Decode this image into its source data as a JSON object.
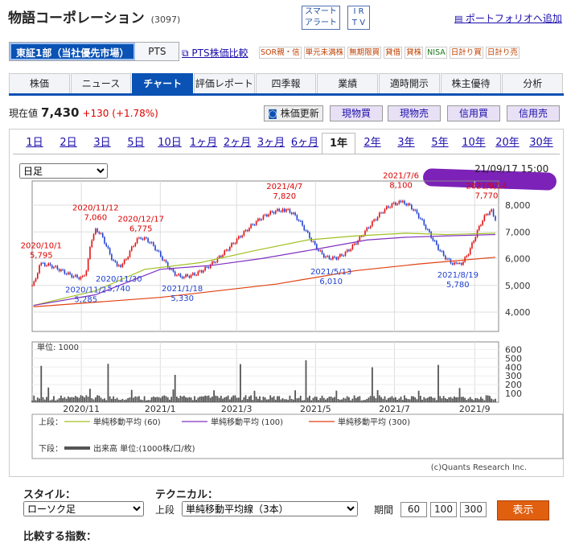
{
  "header": {
    "name": "物語コーポレーション",
    "code": "(3097)",
    "btn_smart": "スマート",
    "btn_alert": "アラート",
    "btn_ir": "I R",
    "btn_tv": "T V",
    "portfolio": "ポートフォリオへ追加"
  },
  "market": {
    "active": "東証1部（当社優先市場）",
    "pts": "PTS",
    "pts_compare": "PTS株価比較"
  },
  "flags": [
    "SOR親・信",
    "単元未満株",
    "無期限買",
    "貸借",
    "貸株",
    "NISA",
    "日計り買",
    "日計り売"
  ],
  "nav": [
    "株価",
    "ニュース",
    "チャート",
    "評価レポート",
    "四季報",
    "業績",
    "適時開示",
    "株主優待",
    "分析"
  ],
  "quote": {
    "label": "現在値",
    "price": "7,430",
    "change": "+130",
    "pct": "(+1.78%)"
  },
  "actions": {
    "update": "株価更新",
    "genbutsu_buy": "現物買",
    "genbutsu_sell": "現物売",
    "shinyo_buy": "信用買",
    "shinyo_sell": "信用売"
  },
  "periods": [
    "1日",
    "2日",
    "3日",
    "5日",
    "10日",
    "1ヶ月",
    "2ヶ月",
    "3ヶ月",
    "6ヶ月",
    "1年",
    "2年",
    "3年",
    "5年",
    "10年",
    "20年",
    "30年"
  ],
  "active_period": "1年",
  "chart": {
    "type_select": "日足",
    "datetime": "21/09/17 15:00",
    "y_ticks": [
      "8,000",
      "7,000",
      "6,000",
      "5,000",
      "4,000"
    ],
    "vol_ticks": [
      "600",
      "500",
      "400",
      "300",
      "200",
      "100"
    ],
    "vol_unit": "単位: 1000",
    "x_ticks": [
      "2020/11",
      "2021/1",
      "2021/3",
      "2021/5",
      "2021/7",
      "2021/9"
    ],
    "annotations": [
      {
        "d": "2020/10/1",
        "v": "5,795"
      },
      {
        "d": "2020/11/2",
        "v": "5,285"
      },
      {
        "d": "2020/11/12",
        "v": "7,060"
      },
      {
        "d": "2020/11/30",
        "v": "5,740"
      },
      {
        "d": "2020/12/17",
        "v": "6,775"
      },
      {
        "d": "2021/1/18",
        "v": "5,330"
      },
      {
        "d": "2021/4/7",
        "v": "7,820"
      },
      {
        "d": "2021/5/13",
        "v": "6,010"
      },
      {
        "d": "2021/7/6",
        "v": "8,100"
      },
      {
        "d": "2021/8/19",
        "v": "5,780"
      },
      {
        "d": "2021/9/14",
        "v": "7,770"
      }
    ],
    "legend": {
      "upper": "上段：",
      "lower": "下段：",
      "ma60": "単純移動平均 (60)",
      "ma100": "単純移動平均 (100)",
      "ma300": "単純移動平均 (300)",
      "vol": "出来高 単位:(1000株/口/枚)"
    },
    "credit": "(c)Quants Research Inc.",
    "colors": {
      "ma60": "#a0c020",
      "ma100": "#8030c0",
      "ma300": "#e04010",
      "up": "#e01010",
      "down": "#2040d0",
      "vol": "#555555"
    }
  },
  "chart_data": {
    "type": "line",
    "ylim": [
      4000,
      8500
    ],
    "points": [
      [
        "2020/9/24",
        5000
      ],
      [
        "2020/10/1",
        5795
      ],
      [
        "2020/11/2",
        5285
      ],
      [
        "2020/11/12",
        7060
      ],
      [
        "2020/11/30",
        5740
      ],
      [
        "2020/12/17",
        6775
      ],
      [
        "2021/1/18",
        5330
      ],
      [
        "2021/4/7",
        7820
      ],
      [
        "2021/5/13",
        6010
      ],
      [
        "2021/7/6",
        8100
      ],
      [
        "2021/8/19",
        5780
      ],
      [
        "2021/9/14",
        7770
      ],
      [
        "2021/9/17",
        7430
      ]
    ],
    "series": [
      {
        "name": "単純移動平均 (60)"
      },
      {
        "name": "単純移動平均 (100)"
      },
      {
        "name": "単純移動平均 (300)"
      }
    ]
  },
  "controls": {
    "style_label": "スタイル：",
    "style_value": "ローソク足",
    "tech_label": "テクニカル：",
    "tech_upper": "上段",
    "tech_value": "単純移動平均線（3本）",
    "period_label": "期間",
    "p1": "60",
    "p2": "100",
    "p3": "300",
    "show": "表示",
    "compare_label": "比較する指数："
  }
}
